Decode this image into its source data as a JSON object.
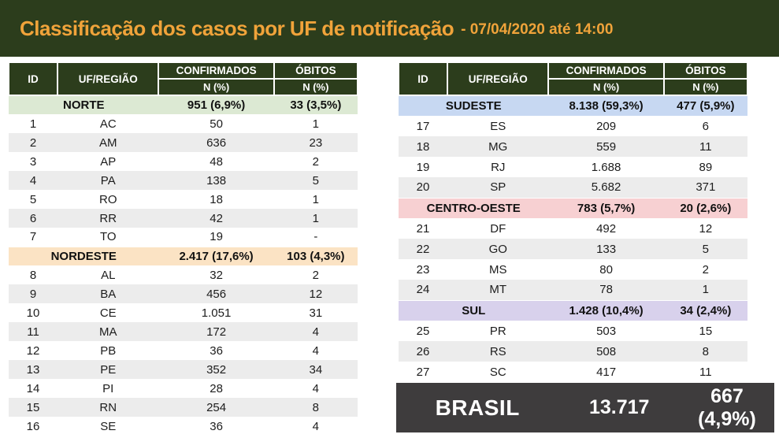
{
  "header": {
    "title": "Classificação dos casos por UF de notificação",
    "subtitle": "- 07/04/2020 até 14:00"
  },
  "table_headers": {
    "id": "ID",
    "uf": "UF/REGIÃO",
    "confirmed": "CONFIRMADOS",
    "deaths": "ÓBITOS",
    "n_pct": "N (%)"
  },
  "section_colors": {
    "NORTE": "#dce9d3",
    "NORDESTE": "#fbe3c4",
    "SUDESTE": "#c7d8f2",
    "CENTRO-OESTE": "#f7d0d2",
    "SUL": "#d8d1ec"
  },
  "colors": {
    "banner_green": "#2c3d1c",
    "title_orange": "#f0a33a",
    "alt_row_gray": "#ececec",
    "footer_gray": "#3e3c3d"
  },
  "layout": {
    "left_regions": [
      0,
      1
    ],
    "right_regions": [
      2,
      3,
      4
    ]
  },
  "chart_data": {
    "type": "table",
    "title": "Classificação dos casos por UF de notificação - 07/04/2020 até 14:00",
    "columns": [
      "ID",
      "UF/REGIÃO",
      "CONFIRMADOS N (%)",
      "ÓBITOS N (%)"
    ],
    "regions": [
      {
        "name": "NORTE",
        "confirmed": "951 (6,9%)",
        "deaths": "33 (3,5%)",
        "states": [
          {
            "id": "1",
            "uf": "AC",
            "confirmed": "50",
            "deaths": "1"
          },
          {
            "id": "2",
            "uf": "AM",
            "confirmed": "636",
            "deaths": "23"
          },
          {
            "id": "3",
            "uf": "AP",
            "confirmed": "48",
            "deaths": "2"
          },
          {
            "id": "4",
            "uf": "PA",
            "confirmed": "138",
            "deaths": "5"
          },
          {
            "id": "5",
            "uf": "RO",
            "confirmed": "18",
            "deaths": "1"
          },
          {
            "id": "6",
            "uf": "RR",
            "confirmed": "42",
            "deaths": "1"
          },
          {
            "id": "7",
            "uf": "TO",
            "confirmed": "19",
            "deaths": "-"
          }
        ]
      },
      {
        "name": "NORDESTE",
        "confirmed": "2.417 (17,6%)",
        "deaths": "103 (4,3%)",
        "states": [
          {
            "id": "8",
            "uf": "AL",
            "confirmed": "32",
            "deaths": "2"
          },
          {
            "id": "9",
            "uf": "BA",
            "confirmed": "456",
            "deaths": "12"
          },
          {
            "id": "10",
            "uf": "CE",
            "confirmed": "1.051",
            "deaths": "31"
          },
          {
            "id": "11",
            "uf": "MA",
            "confirmed": "172",
            "deaths": "4"
          },
          {
            "id": "12",
            "uf": "PB",
            "confirmed": "36",
            "deaths": "4"
          },
          {
            "id": "13",
            "uf": "PE",
            "confirmed": "352",
            "deaths": "34"
          },
          {
            "id": "14",
            "uf": "PI",
            "confirmed": "28",
            "deaths": "4"
          },
          {
            "id": "15",
            "uf": "RN",
            "confirmed": "254",
            "deaths": "8"
          },
          {
            "id": "16",
            "uf": "SE",
            "confirmed": "36",
            "deaths": "4"
          }
        ]
      },
      {
        "name": "SUDESTE",
        "confirmed": "8.138 (59,3%)",
        "deaths": "477 (5,9%)",
        "states": [
          {
            "id": "17",
            "uf": "ES",
            "confirmed": "209",
            "deaths": "6"
          },
          {
            "id": "18",
            "uf": "MG",
            "confirmed": "559",
            "deaths": "11"
          },
          {
            "id": "19",
            "uf": "RJ",
            "confirmed": "1.688",
            "deaths": "89"
          },
          {
            "id": "20",
            "uf": "SP",
            "confirmed": "5.682",
            "deaths": "371"
          }
        ]
      },
      {
        "name": "CENTRO-OESTE",
        "confirmed": "783 (5,7%)",
        "deaths": "20 (2,6%)",
        "states": [
          {
            "id": "21",
            "uf": "DF",
            "confirmed": "492",
            "deaths": "12"
          },
          {
            "id": "22",
            "uf": "GO",
            "confirmed": "133",
            "deaths": "5"
          },
          {
            "id": "23",
            "uf": "MS",
            "confirmed": "80",
            "deaths": "2"
          },
          {
            "id": "24",
            "uf": "MT",
            "confirmed": "78",
            "deaths": "1"
          }
        ]
      },
      {
        "name": "SUL",
        "confirmed": "1.428 (10,4%)",
        "deaths": "34 (2,4%)",
        "states": [
          {
            "id": "25",
            "uf": "PR",
            "confirmed": "503",
            "deaths": "15"
          },
          {
            "id": "26",
            "uf": "RS",
            "confirmed": "508",
            "deaths": "8"
          },
          {
            "id": "27",
            "uf": "SC",
            "confirmed": "417",
            "deaths": "11"
          }
        ]
      }
    ],
    "total": {
      "name": "BRASIL",
      "confirmed": "13.717",
      "deaths": "667 (4,9%)"
    }
  }
}
